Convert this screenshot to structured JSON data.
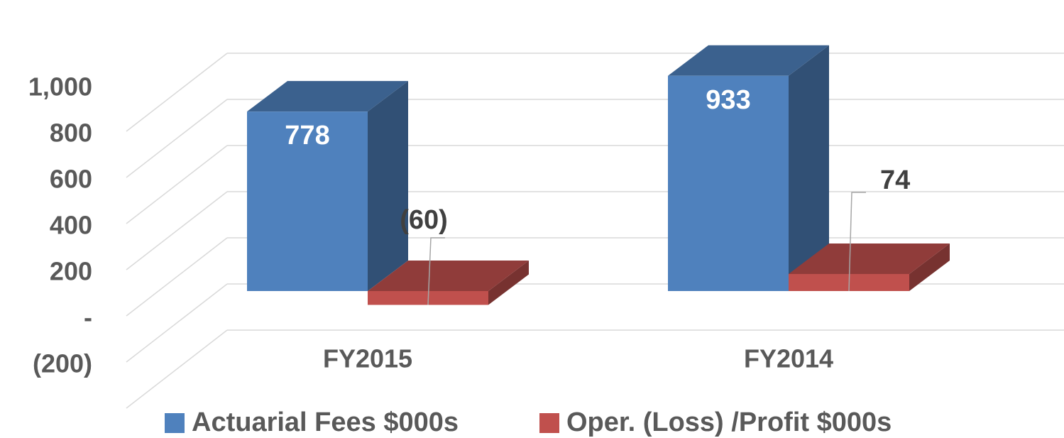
{
  "chart_data": {
    "type": "bar3d",
    "categories": [
      "FY2015",
      "FY2014"
    ],
    "series": [
      {
        "name": "Actuarial Fees $000s",
        "color": "#4f81bd",
        "values": [
          778,
          933
        ]
      },
      {
        "name": "Oper. (Loss) /Profit $000s",
        "color": "#c0504d",
        "values": [
          -60,
          74
        ],
        "value_labels": [
          "(60)",
          "74"
        ]
      }
    ],
    "ylim": [
      -200,
      1000
    ],
    "yticks": [
      {
        "value": -200,
        "label": "(200)"
      },
      {
        "value": 0,
        "label": "-"
      },
      200,
      400,
      600,
      800,
      {
        "value": 1000,
        "label": "1,000"
      }
    ],
    "grid": true,
    "legend": "bottom"
  }
}
